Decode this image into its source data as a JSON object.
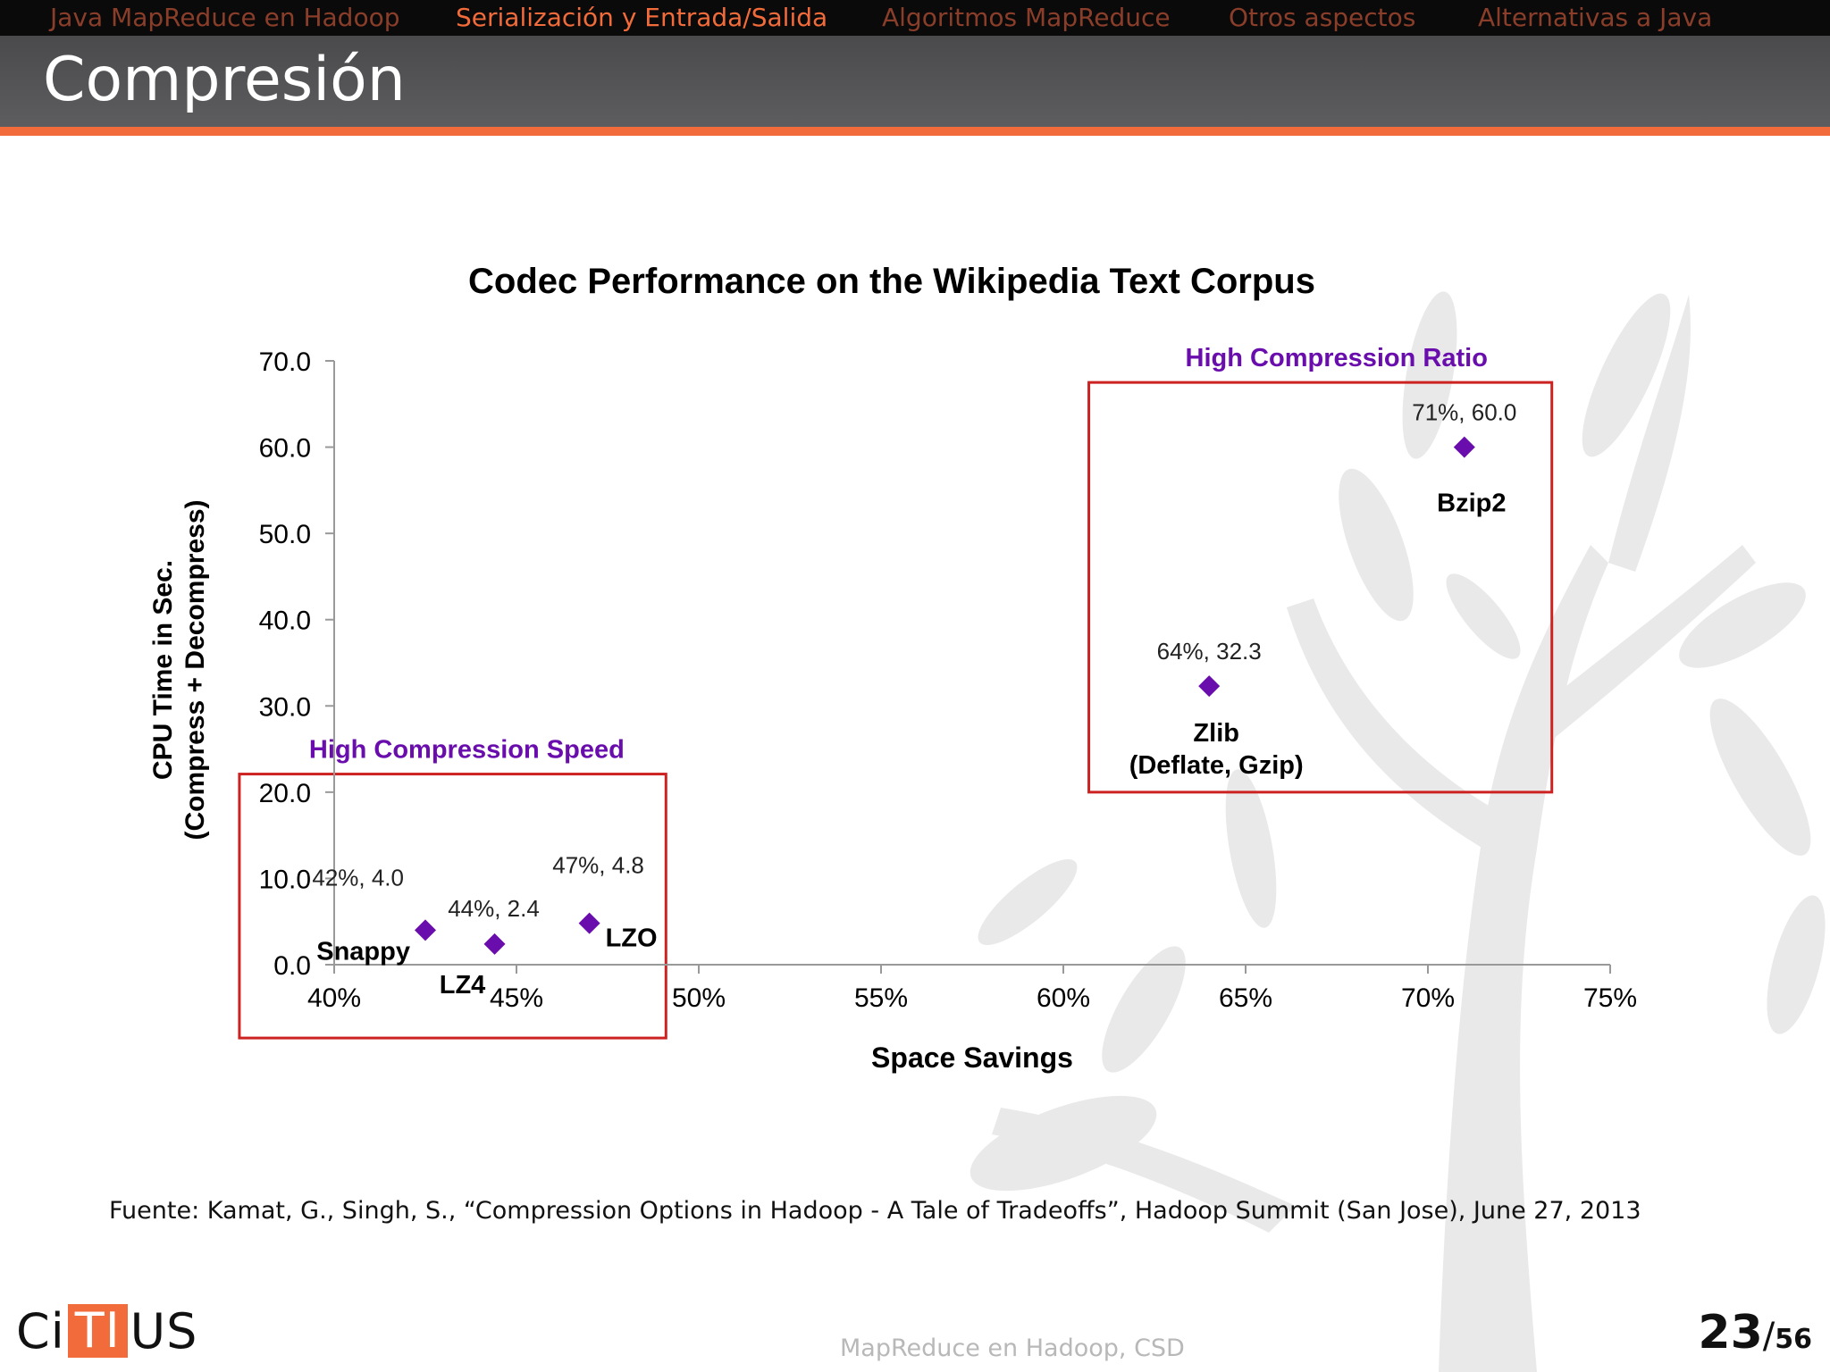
{
  "nav": {
    "items": [
      {
        "label": "Java MapReduce en Hadoop",
        "active": false
      },
      {
        "label": "Serialización y Entrada/Salida",
        "active": true
      },
      {
        "label": "Algoritmos MapReduce",
        "active": false
      },
      {
        "label": "Otros aspectos",
        "active": false
      },
      {
        "label": "Alternativas a Java",
        "active": false
      }
    ]
  },
  "slide": {
    "title": "Compresión",
    "source": "Fuente: Kamat, G., Singh, S., “Compression Options in Hadoop - A Tale of Tradeoffs”, Hadoop Summit (San Jose), June 27, 2013"
  },
  "footer": {
    "logo_left": "Ci",
    "logo_box": "TI",
    "logo_right": "US",
    "center": "MapReduce en Hadoop, CSD",
    "page_current": "23",
    "page_sep": "/",
    "page_total": "56"
  },
  "colors": {
    "accent": "#f26b3a",
    "marker": "#6a0dad",
    "group_box": "#cc2222",
    "group_label": "#6a0dad"
  },
  "chart_data": {
    "type": "scatter",
    "title": "Codec Performance on the Wikipedia Text Corpus",
    "xlabel": "Space Savings",
    "ylabel_lines": [
      "CPU Time in Sec.",
      "(Compress + Decompress)"
    ],
    "xlim": [
      40,
      75
    ],
    "ylim": [
      0,
      70
    ],
    "x_ticks": [
      "40%",
      "45%",
      "50%",
      "55%",
      "60%",
      "65%",
      "70%",
      "75%"
    ],
    "y_ticks": [
      "0.0",
      "10.0",
      "20.0",
      "30.0",
      "40.0",
      "50.0",
      "60.0",
      "70.0"
    ],
    "grid": false,
    "legend": "none",
    "points": [
      {
        "name": "Snappy",
        "label": "42%, 4.0",
        "x": 42.5,
        "y": 4.0
      },
      {
        "name": "LZ4",
        "label": "44%, 2.4",
        "x": 44.4,
        "y": 2.4
      },
      {
        "name": "LZO",
        "label": "47%, 4.8",
        "x": 47.0,
        "y": 4.8
      },
      {
        "name": "Zlib",
        "name2": "(Deflate, Gzip)",
        "label": "64%, 32.3",
        "x": 64.0,
        "y": 32.3
      },
      {
        "name": "Bzip2",
        "label": "71%, 60.0",
        "x": 71.0,
        "y": 60.0
      }
    ],
    "groups": [
      {
        "label": "High Compression Speed",
        "x_range": [
          37.4,
          49.1
        ],
        "y_range": [
          -8.5,
          22.1
        ]
      },
      {
        "label": "High Compression Ratio",
        "x_range": [
          60.7,
          73.4
        ],
        "y_range": [
          20.0,
          67.5
        ]
      }
    ]
  }
}
